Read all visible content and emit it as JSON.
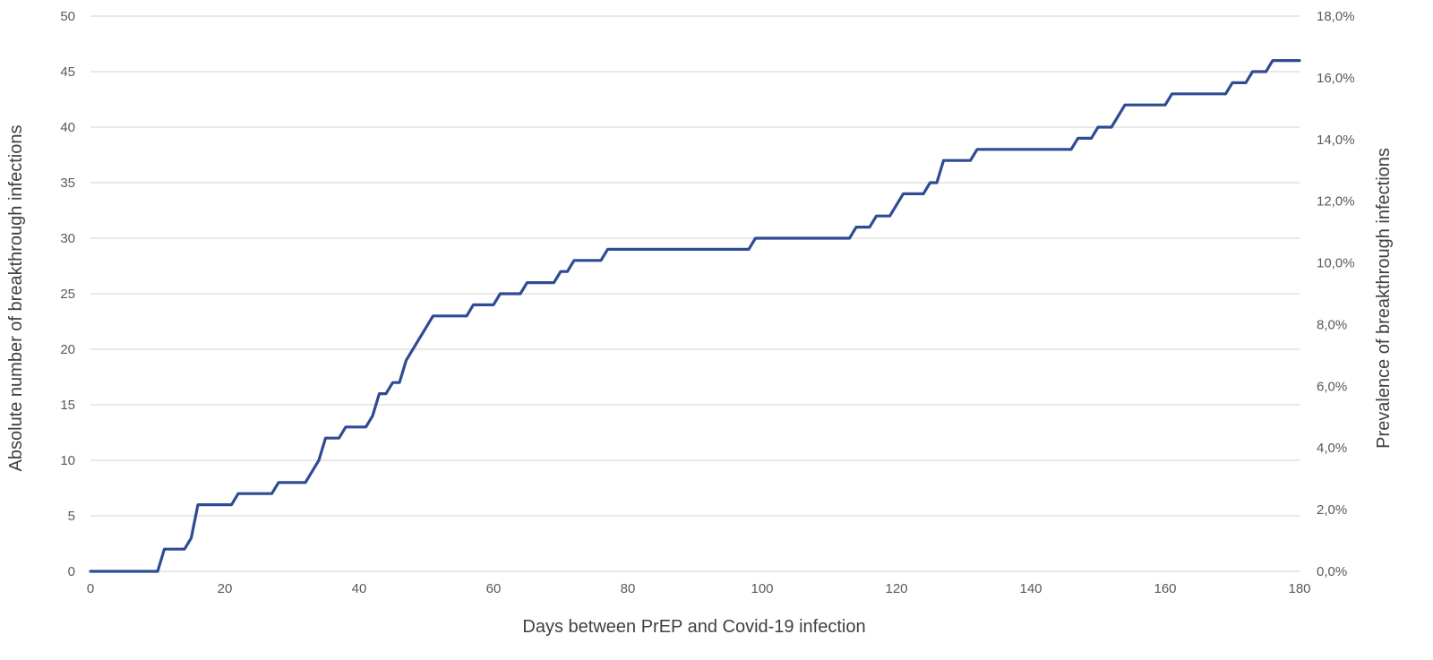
{
  "chart_data": {
    "type": "line",
    "title": "",
    "xlabel": "Days between PrEP and Covid-19 infection",
    "ylabel_left": "Absolute number of breakthrough infections",
    "ylabel_right": "Prevalence of breakthrough infections",
    "xlim": [
      0,
      180
    ],
    "ylim_left": [
      0,
      50
    ],
    "ylim_right": [
      0,
      18
    ],
    "x_ticks": [
      "0",
      "20",
      "40",
      "60",
      "80",
      "100",
      "120",
      "140",
      "160",
      "180"
    ],
    "y_ticks_left": [
      "0",
      "5",
      "10",
      "15",
      "20",
      "25",
      "30",
      "35",
      "40",
      "45",
      "50"
    ],
    "y_ticks_right": [
      "0,0%",
      "2,0%",
      "4,0%",
      "6,0%",
      "8,0%",
      "10,0%",
      "12,0%",
      "14,0%",
      "16,0%",
      "18,0%"
    ],
    "grid": true,
    "line_color": "#2f4b93",
    "series": [
      {
        "x": [
          0,
          10,
          11,
          14,
          15,
          16,
          21,
          22,
          27,
          28,
          32,
          33,
          34,
          35,
          37,
          38,
          41,
          42,
          43,
          44,
          45,
          46,
          47,
          51,
          56,
          57,
          60,
          61,
          64,
          65,
          69,
          70,
          71,
          72,
          76,
          77,
          98,
          99,
          113,
          114,
          116,
          117,
          119,
          120,
          121,
          124,
          125,
          126,
          127,
          131,
          132,
          146,
          147,
          149,
          150,
          152,
          154,
          160,
          161,
          169,
          170,
          172,
          173,
          175,
          176,
          180
        ],
        "y": [
          0,
          0,
          2,
          2,
          3,
          6,
          6,
          7,
          7,
          8,
          8,
          9,
          10,
          12,
          12,
          13,
          13,
          14,
          16,
          16,
          17,
          17,
          19,
          23,
          23,
          24,
          24,
          25,
          25,
          26,
          26,
          27,
          27,
          28,
          28,
          29,
          29,
          30,
          30,
          31,
          31,
          32,
          32,
          33,
          34,
          34,
          35,
          35,
          37,
          37,
          38,
          38,
          39,
          39,
          40,
          40,
          42,
          42,
          43,
          43,
          44,
          44,
          45,
          45,
          46,
          46
        ]
      }
    ]
  }
}
